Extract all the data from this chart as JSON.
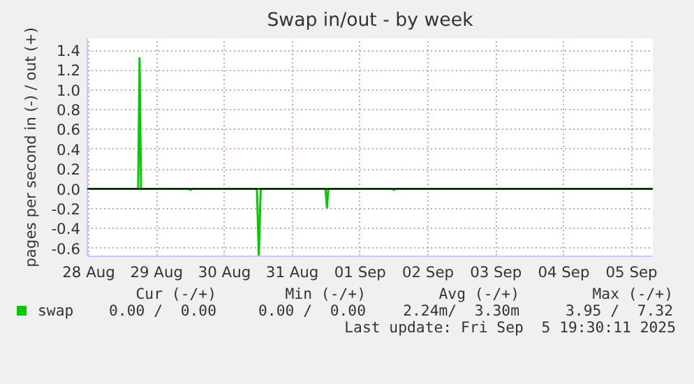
{
  "chart_data": {
    "type": "line",
    "title": "Swap in/out - by week",
    "ylabel": "pages per second in (-) / out (+)",
    "x": [
      "2025-08-28T11:30",
      "2025-08-29T05:30",
      "2025-08-29T06:00",
      "2025-08-29T06:30",
      "2025-08-29T23:30",
      "2025-08-30T00:00",
      "2025-08-30T00:30",
      "2025-08-30T23:30",
      "2025-08-31T00:10",
      "2025-08-31T00:50",
      "2025-08-31T23:45",
      "2025-09-01T00:15",
      "2025-09-01T00:45",
      "2025-09-01T23:30",
      "2025-09-02T00:00",
      "2025-09-02T00:30",
      "2025-09-05T19:30"
    ],
    "series": [
      {
        "name": "swap",
        "color": "#00cc00",
        "values": [
          0,
          0,
          1.32,
          0,
          0,
          -0.01,
          0,
          0,
          -0.67,
          0,
          0,
          -0.19,
          0,
          0,
          -0.01,
          0,
          0
        ]
      }
    ],
    "xlim": [
      "2025-08-28T11:30",
      "2025-09-05T19:30"
    ],
    "xticks": [
      {
        "value": "2025-08-28T12:00",
        "label": "28 Aug"
      },
      {
        "value": "2025-08-29T12:00",
        "label": "29 Aug"
      },
      {
        "value": "2025-08-30T12:00",
        "label": "30 Aug"
      },
      {
        "value": "2025-08-31T12:00",
        "label": "31 Aug"
      },
      {
        "value": "2025-09-01T12:00",
        "label": "01 Sep"
      },
      {
        "value": "2025-09-02T12:00",
        "label": "02 Sep"
      },
      {
        "value": "2025-09-03T12:00",
        "label": "03 Sep"
      },
      {
        "value": "2025-09-04T12:00",
        "label": "04 Sep"
      },
      {
        "value": "2025-09-05T12:00",
        "label": "05 Sep"
      }
    ],
    "ylim": [
      -0.68,
      1.52
    ],
    "yticks": [
      {
        "value": -0.6,
        "label": "-0.6"
      },
      {
        "value": -0.4,
        "label": "-0.4"
      },
      {
        "value": -0.2,
        "label": "-0.2"
      },
      {
        "value": 0,
        "label": "0.0"
      },
      {
        "value": 0.2,
        "label": "0.2"
      },
      {
        "value": 0.4,
        "label": "0.4"
      },
      {
        "value": 0.6,
        "label": "0.6"
      },
      {
        "value": 0.8,
        "label": "0.8"
      },
      {
        "value": 1.0,
        "label": "1.0"
      },
      {
        "value": 1.2,
        "label": "1.2"
      },
      {
        "value": 1.4,
        "label": "1.4"
      }
    ],
    "ref_lines": [
      {
        "axis": "y",
        "value": 0,
        "color": "#000000"
      }
    ],
    "grid": true,
    "legend": "bottom",
    "annotations": [
      "Cur (-/+)",
      "Min (-/+)",
      "Avg (-/+)",
      "Max (-/+)",
      "0.00 /  0.00",
      "0.00 /  0.00",
      "2.24m/  3.30m",
      "3.95 /  7.32",
      "Last update: Fri Sep  5 19:30:11 2025"
    ]
  }
}
